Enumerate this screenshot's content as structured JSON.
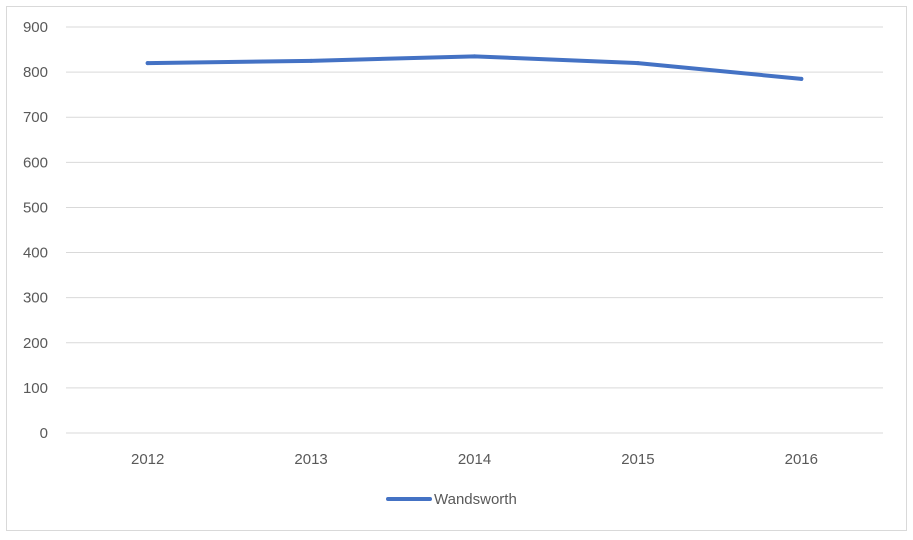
{
  "chart_data": {
    "type": "line",
    "title": "",
    "xlabel": "",
    "ylabel": "",
    "categories": [
      "2012",
      "2013",
      "2014",
      "2015",
      "2016"
    ],
    "series": [
      {
        "name": "Wandsworth",
        "color": "#4472c4",
        "values": [
          820,
          825,
          835,
          820,
          785
        ]
      }
    ],
    "ylim": [
      0,
      900
    ],
    "yticks": [
      0,
      100,
      200,
      300,
      400,
      500,
      600,
      700,
      800,
      900
    ],
    "grid": true,
    "legend": "bottom-center"
  }
}
